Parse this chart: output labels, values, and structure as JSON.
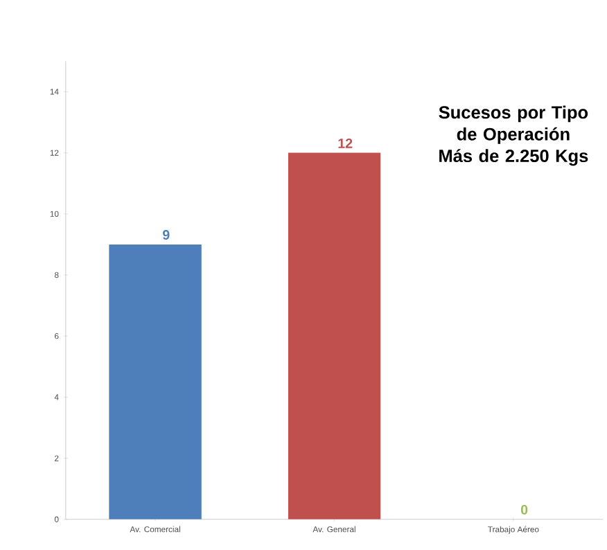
{
  "chart_data": {
    "type": "bar",
    "title": "Sucesos por Tipo de Operación Más de 2.250 Kgs",
    "categories": [
      "Av. Comercial",
      "Av. General",
      "Trabajo Aéreo"
    ],
    "values": [
      9,
      12,
      0
    ],
    "colors": [
      "#4f7fbb",
      "#c0504d",
      "#9bbb59"
    ],
    "ylim": [
      0,
      15
    ],
    "yticks": [
      0,
      2,
      4,
      6,
      8,
      10,
      12,
      14
    ],
    "data_labels": true,
    "grid": false
  }
}
